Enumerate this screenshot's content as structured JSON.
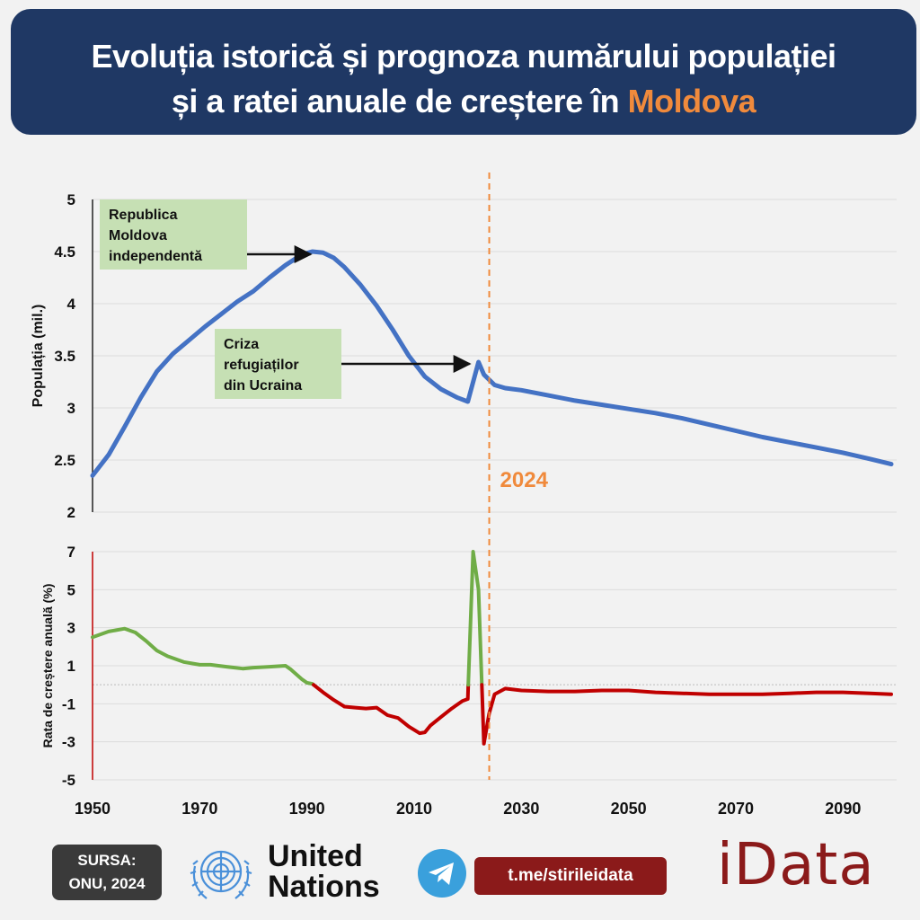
{
  "header": {
    "title_line1": "Evoluția istorică și prognoza numărului populației",
    "title_line2_prefix": "și a ratei anuale de creștere în ",
    "title_line2_accent": "Moldova"
  },
  "colors": {
    "header_bg": "#1f3864",
    "accent": "#f08a3c",
    "population_line": "#4472c4",
    "growth_positive": "#70ad47",
    "growth_negative": "#c00000",
    "annotation_bg": "#c6e0b4",
    "brand": "#8b1a1a"
  },
  "annotations": [
    {
      "text": [
        "Republica",
        "Moldova",
        "independentă"
      ],
      "year": 1991
    },
    {
      "text": [
        "Criza",
        "refugiaților",
        "din Ucraina"
      ],
      "year": 2021
    }
  ],
  "marker": {
    "year": 2024,
    "label": "2024"
  },
  "chart_data": [
    {
      "type": "line",
      "ylabel": "Populația (mil.)",
      "ylim": [
        2,
        5
      ],
      "yticks": [
        "2",
        "2.5",
        "3",
        "3.5",
        "4",
        "4.5",
        "5"
      ],
      "grid": true,
      "series": [
        {
          "x": [
            1950,
            1953,
            1956,
            1959,
            1962,
            1965,
            1968,
            1971,
            1974,
            1977,
            1980,
            1983,
            1986,
            1989,
            1991,
            1993,
            1995,
            1997,
            2000,
            2003,
            2006,
            2009,
            2012,
            2015,
            2018,
            2020,
            2022,
            2023,
            2025,
            2027,
            2030,
            2035,
            2040,
            2045,
            2050,
            2055,
            2060,
            2065,
            2070,
            2075,
            2080,
            2085,
            2090,
            2095,
            2099
          ],
          "values": [
            2.35,
            2.55,
            2.82,
            3.1,
            3.35,
            3.52,
            3.65,
            3.78,
            3.9,
            4.02,
            4.12,
            4.25,
            4.37,
            4.47,
            4.5,
            4.49,
            4.44,
            4.35,
            4.18,
            3.98,
            3.75,
            3.5,
            3.3,
            3.18,
            3.1,
            3.06,
            3.44,
            3.32,
            3.22,
            3.19,
            3.17,
            3.12,
            3.07,
            3.03,
            2.99,
            2.95,
            2.9,
            2.84,
            2.78,
            2.72,
            2.67,
            2.62,
            2.57,
            2.51,
            2.46
          ]
        }
      ]
    },
    {
      "type": "line",
      "ylabel": "Rata de creștere anuală (%)",
      "ylim": [
        -5,
        7
      ],
      "yticks": [
        "-5",
        "-3",
        "-1",
        "1",
        "3",
        "5",
        "7"
      ],
      "xlim": [
        1950,
        2100
      ],
      "xticks": [
        "1950",
        "1970",
        "1990",
        "2010",
        "2030",
        "2050",
        "2070",
        "2090"
      ],
      "grid": true,
      "series": [
        {
          "x": [
            1950,
            1953,
            1956,
            1958,
            1960,
            1962,
            1964,
            1967,
            1970,
            1972,
            1975,
            1978,
            1980,
            1983,
            1986,
            1987,
            1989,
            1990,
            1991,
            1993,
            1995,
            1997,
            1999,
            2001,
            2003,
            2005,
            2007,
            2009,
            2011,
            2012,
            2013,
            2015,
            2017,
            2019,
            2020,
            2021,
            2022,
            2023,
            2024,
            2025,
            2027,
            2030,
            2035,
            2040,
            2045,
            2050,
            2055,
            2060,
            2065,
            2070,
            2075,
            2080,
            2085,
            2090,
            2095,
            2099
          ],
          "values": [
            2.5,
            2.8,
            2.95,
            2.75,
            2.3,
            1.8,
            1.5,
            1.2,
            1.05,
            1.05,
            0.95,
            0.85,
            0.9,
            0.95,
            1.0,
            0.8,
            0.3,
            0.1,
            0.05,
            -0.4,
            -0.8,
            -1.15,
            -1.2,
            -1.25,
            -1.2,
            -1.6,
            -1.75,
            -2.2,
            -2.55,
            -2.5,
            -2.15,
            -1.7,
            -1.25,
            -0.85,
            -0.75,
            7.0,
            5.0,
            -3.1,
            -1.5,
            -0.5,
            -0.2,
            -0.3,
            -0.35,
            -0.35,
            -0.3,
            -0.3,
            -0.4,
            -0.45,
            -0.5,
            -0.5,
            -0.5,
            -0.45,
            -0.4,
            -0.4,
            -0.45,
            -0.5
          ]
        }
      ]
    }
  ],
  "footer": {
    "source_line1": "SURSA:",
    "source_line2": "ONU, 2024",
    "un_line1": "United",
    "un_line2": "Nations",
    "telegram": "t.me/stirileidata",
    "brand": "iData"
  }
}
